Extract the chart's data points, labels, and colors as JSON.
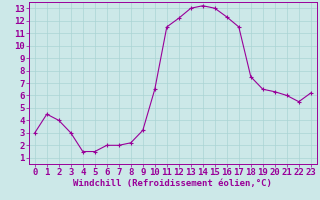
{
  "x": [
    0,
    1,
    2,
    3,
    4,
    5,
    6,
    7,
    8,
    9,
    10,
    11,
    12,
    13,
    14,
    15,
    16,
    17,
    18,
    19,
    20,
    21,
    22,
    23
  ],
  "y": [
    3.0,
    4.5,
    4.0,
    3.0,
    1.5,
    1.5,
    2.0,
    2.0,
    2.2,
    3.2,
    6.5,
    11.5,
    12.2,
    13.0,
    13.2,
    13.0,
    12.3,
    11.5,
    7.5,
    6.5,
    6.3,
    6.0,
    5.5,
    6.2
  ],
  "line_color": "#990099",
  "marker": "+",
  "marker_size": 3,
  "bg_color": "#cce8e8",
  "grid_color": "#aad4d4",
  "xlabel": "Windchill (Refroidissement éolien,°C)",
  "xlabel_color": "#990099",
  "tick_color": "#990099",
  "spine_color": "#990099",
  "ylim_min": 0.5,
  "ylim_max": 13.5,
  "xlim_min": -0.5,
  "xlim_max": 23.5,
  "yticks": [
    1,
    2,
    3,
    4,
    5,
    6,
    7,
    8,
    9,
    10,
    11,
    12,
    13
  ],
  "xticks": [
    0,
    1,
    2,
    3,
    4,
    5,
    6,
    7,
    8,
    9,
    10,
    11,
    12,
    13,
    14,
    15,
    16,
    17,
    18,
    19,
    20,
    21,
    22,
    23
  ],
  "line_width": 0.8,
  "font_size": 6.5
}
